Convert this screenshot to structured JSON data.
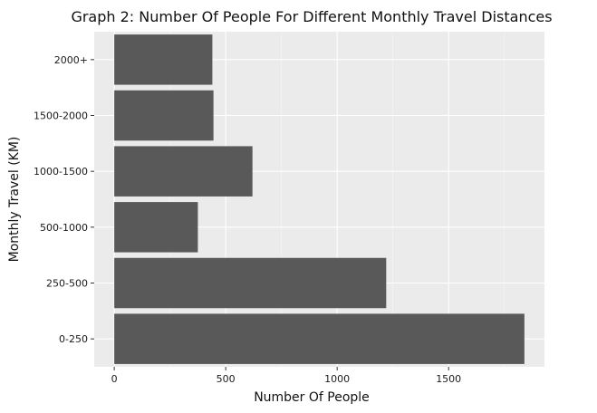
{
  "chart_data": {
    "type": "bar",
    "orientation": "horizontal",
    "title": "Graph 2: Number Of People For Different Monthly Travel Distances",
    "xlabel": "Number Of People",
    "ylabel": "Monthly Travel (KM)",
    "categories": [
      "0-250",
      "250-500",
      "500-1000",
      "1000-1500",
      "1500-2000",
      "2000+"
    ],
    "values": [
      1840,
      1220,
      375,
      620,
      445,
      440
    ],
    "xlim": [
      -90,
      1930
    ],
    "xticks": [
      0,
      500,
      1000,
      1500
    ],
    "xtick_labels": [
      "0",
      "500",
      "1000",
      "1500"
    ],
    "grid": true,
    "legend": "none",
    "colors": {
      "bar": "#595959",
      "panel": "#ebebeb",
      "grid_major": "#ffffff",
      "grid_minor": "#f5f5f5",
      "tick": "#333333"
    }
  }
}
